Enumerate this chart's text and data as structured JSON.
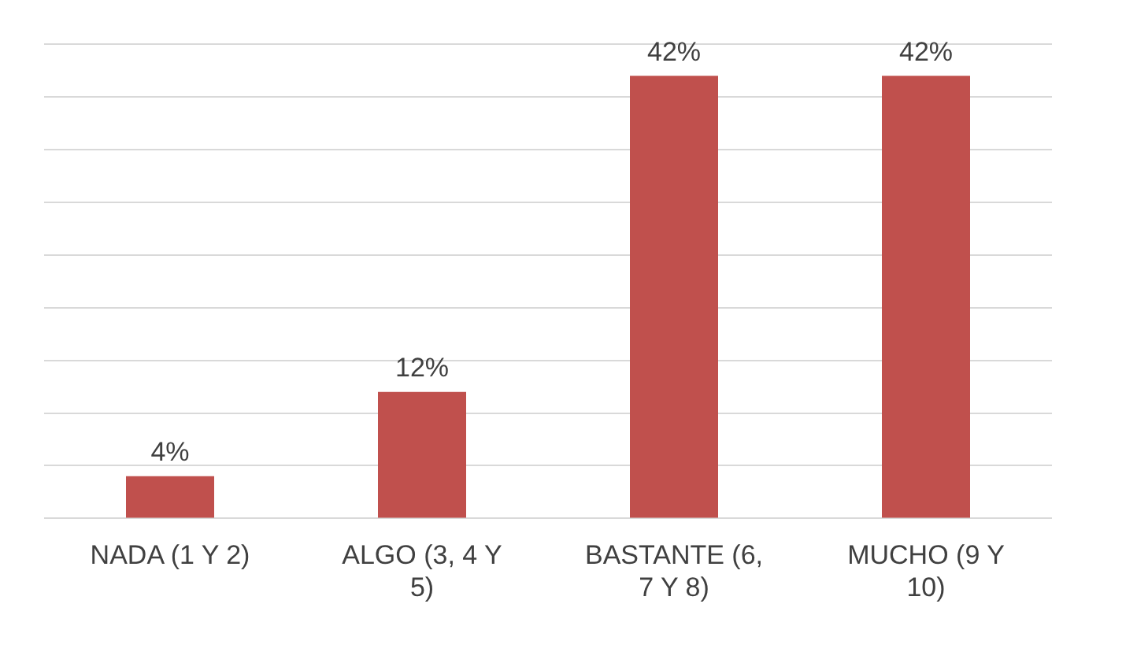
{
  "chart_data": {
    "type": "bar",
    "categories": [
      "NADA (1 Y 2)",
      "ALGO (3, 4 Y 5)",
      "BASTANTE (6, 7 Y 8)",
      "MUCHO (9 Y 10)"
    ],
    "values": [
      4,
      12,
      42,
      42
    ],
    "color": "#c0504d",
    "value_labels": [
      "4%",
      "12%",
      "42%",
      "42%"
    ],
    "grid": "y",
    "tick_labels": "x",
    "legend": false
  }
}
